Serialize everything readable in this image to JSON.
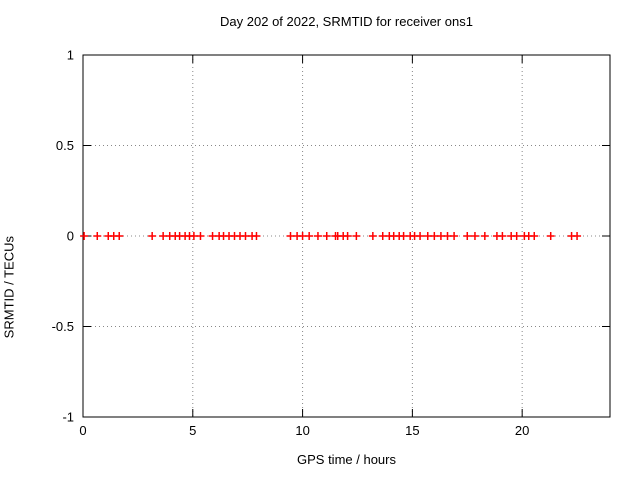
{
  "page": {
    "background": "#ffffff"
  },
  "chart_data": {
    "type": "scatter",
    "title": "Day 202 of 2022, SRMTID for receiver ons1",
    "xlabel": "GPS time / hours",
    "ylabel": "SRMTID / TECUs",
    "xlim": [
      0,
      24
    ],
    "ylim": [
      -1,
      1
    ],
    "grid": true,
    "legend_position": "none",
    "axis_color": "#000000",
    "grid_color": "#888888",
    "marker": {
      "shape": "plus",
      "color": "#ff0000",
      "half_size": 4
    },
    "xticks": [
      {
        "v": 0,
        "label": "0"
      },
      {
        "v": 5,
        "label": "5"
      },
      {
        "v": 10,
        "label": "10"
      },
      {
        "v": 15,
        "label": "15"
      },
      {
        "v": 20,
        "label": "20"
      }
    ],
    "yticks": [
      {
        "v": -1,
        "label": "-1"
      },
      {
        "v": -0.5,
        "label": "-0.5"
      },
      {
        "v": 0,
        "label": "0"
      },
      {
        "v": 0.5,
        "label": "0.5"
      },
      {
        "v": 1,
        "label": "1"
      }
    ],
    "series": [
      {
        "name": "SRMTID",
        "x": [
          0.05,
          0.65,
          1.15,
          1.4,
          1.65,
          3.15,
          3.65,
          3.95,
          4.2,
          4.4,
          4.65,
          4.85,
          5.05,
          5.35,
          5.9,
          6.2,
          6.4,
          6.65,
          6.9,
          7.15,
          7.4,
          7.7,
          7.9,
          9.45,
          9.75,
          10.0,
          10.3,
          10.7,
          11.1,
          11.5,
          11.6,
          11.85,
          12.05,
          12.45,
          13.2,
          13.65,
          13.95,
          14.15,
          14.4,
          14.6,
          14.9,
          15.1,
          15.35,
          15.7,
          16.0,
          16.3,
          16.6,
          16.9,
          17.5,
          17.85,
          18.3,
          18.85,
          19.1,
          19.5,
          19.75,
          20.1,
          20.3,
          20.55,
          21.3,
          22.25,
          22.5
        ],
        "y": [
          0,
          0,
          0,
          0,
          0,
          0,
          0,
          0,
          0,
          0,
          0,
          0,
          0,
          0,
          0,
          0,
          0,
          0,
          0,
          0,
          0,
          0,
          0,
          0,
          0,
          0,
          0,
          0,
          0,
          0,
          0,
          0,
          0,
          0,
          0,
          0,
          0,
          0,
          0,
          0,
          0,
          0,
          0,
          0,
          0,
          0,
          0,
          0,
          0,
          0,
          0,
          0,
          0,
          0,
          0,
          0,
          0,
          0,
          0,
          0,
          0
        ]
      }
    ]
  }
}
